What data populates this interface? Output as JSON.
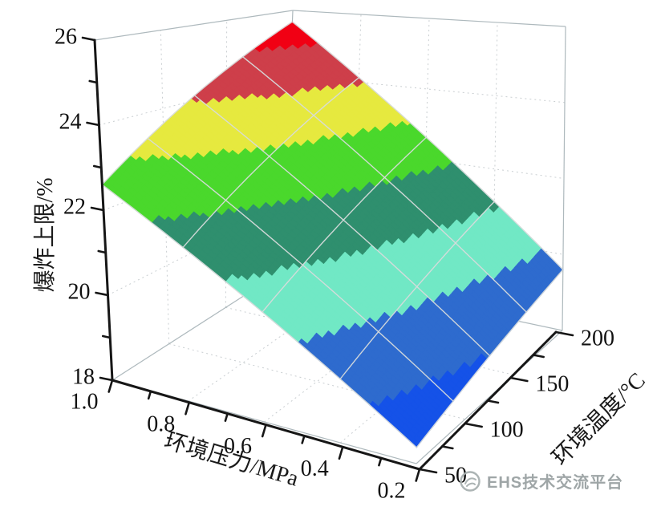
{
  "watermark": {
    "text": "EHS技术交流平台"
  },
  "chart_data": {
    "type": "surface3d",
    "title": "",
    "description": "3D response surface of upper explosion limit versus ambient pressure and ambient temperature",
    "x_axis": {
      "label": "环境压力/MPa",
      "tick_labels": [
        "1.0",
        "0.8",
        "0.6",
        "0.4",
        "0.2"
      ],
      "tick_values": [
        1.0,
        0.8,
        0.6,
        0.4,
        0.2
      ],
      "minor_tick_values": [
        0.9,
        0.7,
        0.5,
        0.3
      ],
      "range": [
        0.2,
        1.0
      ]
    },
    "y_axis": {
      "label": "环境温度/°C",
      "tick_labels": [
        "50",
        "100",
        "150",
        "200"
      ],
      "tick_values": [
        50,
        100,
        150,
        200
      ],
      "minor_tick_values": [
        75,
        125,
        175
      ],
      "range": [
        50,
        200
      ]
    },
    "z_axis": {
      "label": "爆炸上限/%",
      "tick_labels": [
        "18",
        "20",
        "22",
        "24",
        "26"
      ],
      "tick_values": [
        18,
        20,
        22,
        24,
        26
      ],
      "minor_tick_values": [
        19,
        21,
        23,
        25
      ],
      "range": [
        18,
        26
      ]
    },
    "surface": {
      "pressure_MPa": [
        1.0,
        0.8,
        0.6,
        0.4,
        0.2
      ],
      "temperature_C": [
        50,
        87.5,
        125,
        162.5,
        200
      ],
      "z_uel_percent": [
        [
          22.6,
          23.36,
          24.13,
          24.89,
          25.65
        ],
        [
          21.54,
          22.19,
          22.84,
          23.49,
          24.14
        ],
        [
          20.48,
          21.01,
          21.55,
          22.09,
          22.63
        ],
        [
          19.41,
          19.84,
          20.26,
          20.69,
          21.11
        ],
        [
          18.35,
          18.66,
          18.98,
          19.29,
          19.6
        ]
      ]
    },
    "color_bands": [
      {
        "gte": 25,
        "color": "#f10014"
      },
      {
        "gte": 24,
        "color": "#ce3f4a"
      },
      {
        "gte": 23,
        "color": "#e6e93f"
      },
      {
        "gte": 22,
        "color": "#4ad82c"
      },
      {
        "gte": 21,
        "color": "#2f8f6e"
      },
      {
        "gte": 20,
        "color": "#71e8c5"
      },
      {
        "gte": 19,
        "color": "#2e6bce"
      },
      {
        "gte": -999,
        "color": "#1552e8"
      }
    ],
    "mesh_color": "#d7dbdb",
    "wall_grid_color": "#c9ced1",
    "box_edge_color": "#aeb9bd",
    "axis_color": "#161616",
    "grid": {
      "wall_dotted": true,
      "mesh_on_surface": true
    },
    "legend": "none"
  }
}
